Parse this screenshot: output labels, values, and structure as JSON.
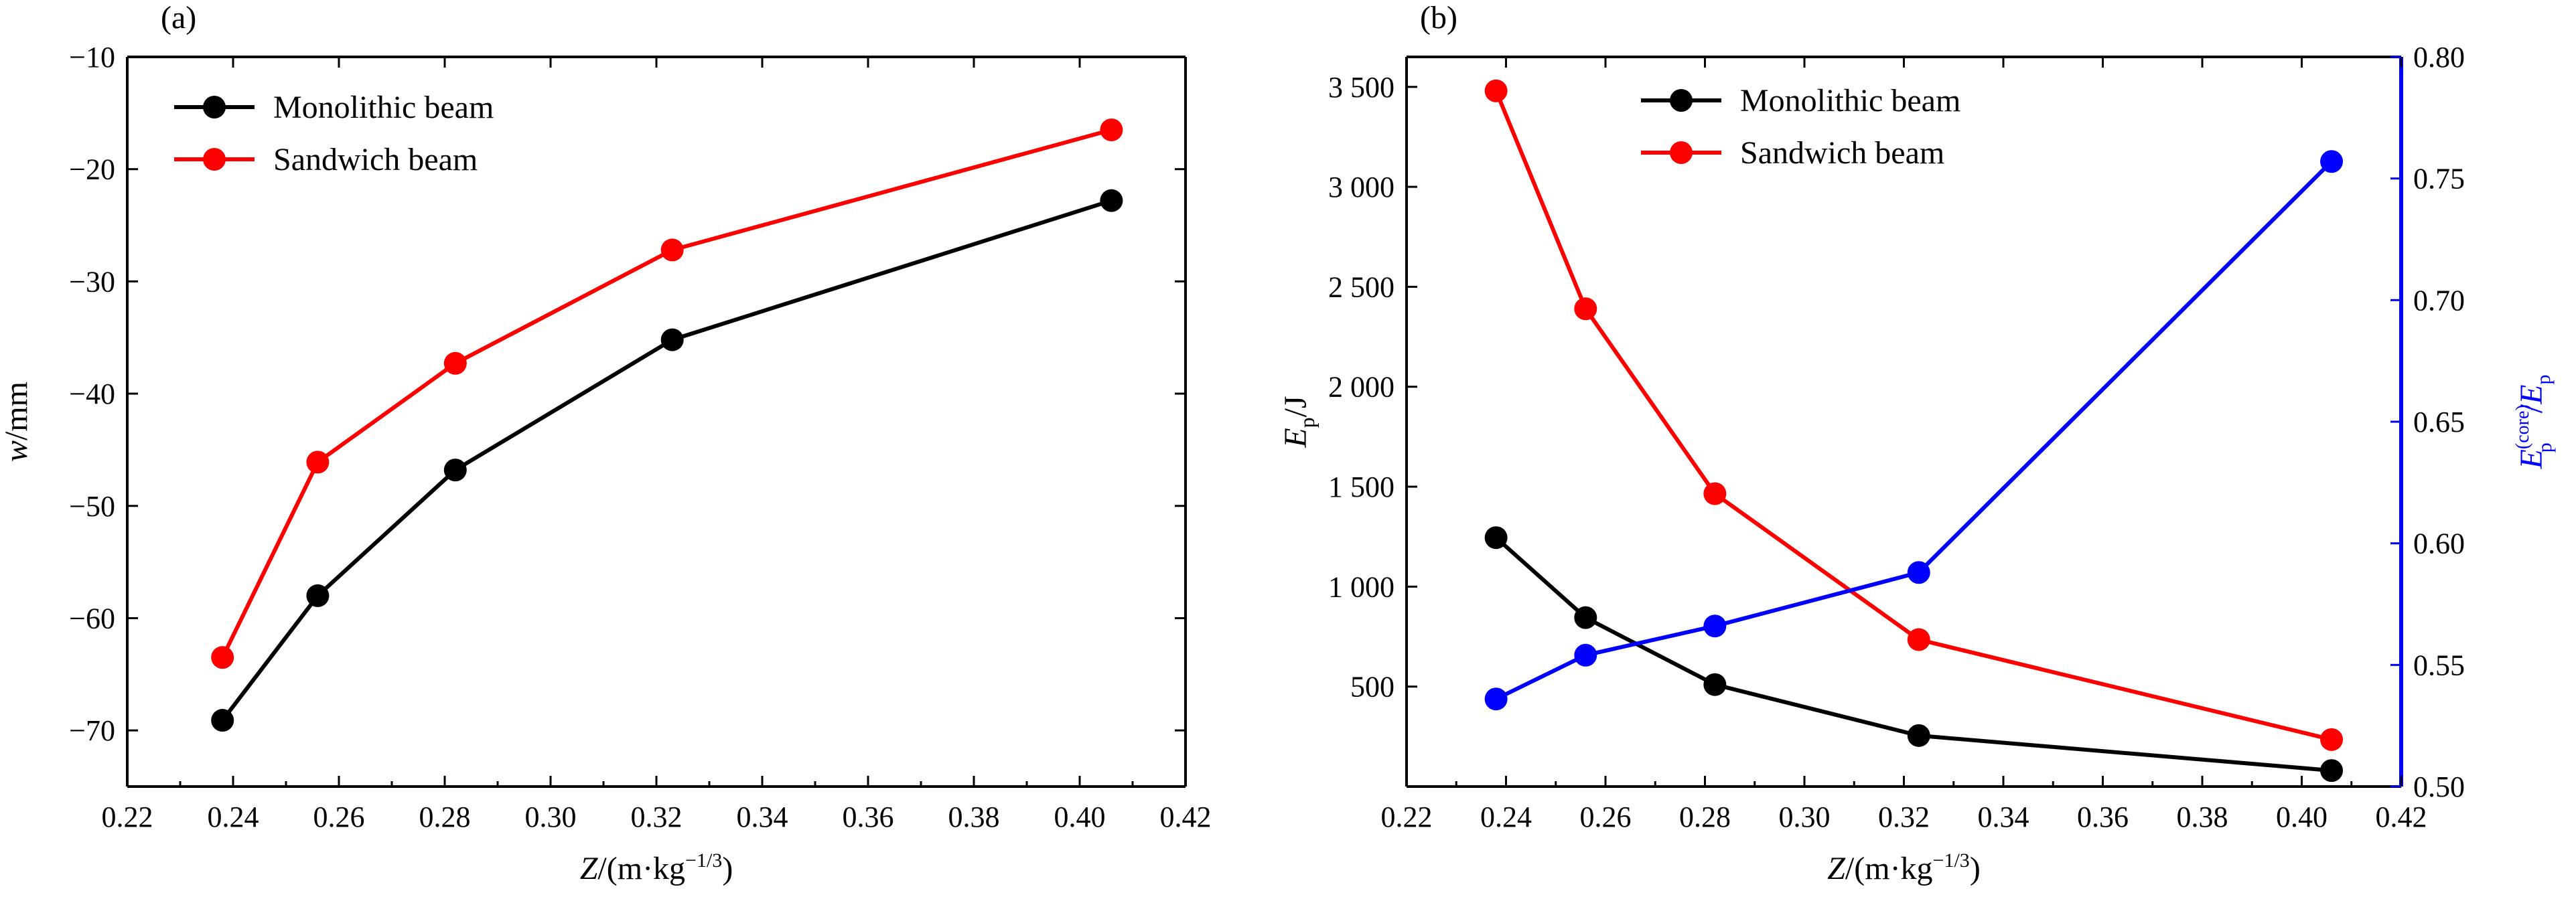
{
  "chart_data": [
    {
      "type": "line",
      "panel_label": "(a)",
      "x": [
        0.238,
        0.256,
        0.282,
        0.323,
        0.406
      ],
      "xlim": [
        0.22,
        0.42
      ],
      "xticks": [
        0.22,
        0.24,
        0.26,
        0.28,
        0.3,
        0.32,
        0.34,
        0.36,
        0.38,
        0.4,
        0.42
      ],
      "xtick_labels": [
        "0.22",
        "0.24",
        "0.26",
        "0.28",
        "0.30",
        "0.32",
        "0.34",
        "0.36",
        "0.38",
        "0.40",
        "0.42"
      ],
      "xlabel": {
        "var": "Z",
        "unit": "/(m·kg",
        "exp": "−1/3",
        "close": ")"
      },
      "ylabel": {
        "var": "w",
        "unit": "/mm"
      },
      "ylim": [
        -75,
        -10
      ],
      "yticks": [
        -70,
        -60,
        -50,
        -40,
        -30,
        -20,
        -10
      ],
      "ytick_labels": [
        "−70",
        "−60",
        "−50",
        "−40",
        "−30",
        "−20",
        "−10"
      ],
      "legend_position": "top-left",
      "series": [
        {
          "name": "Monolithic beam",
          "color": "#000000",
          "values": [
            -69.1,
            -58.0,
            -46.8,
            -35.2,
            -22.8
          ]
        },
        {
          "name": "Sandwich beam",
          "color": "#ff0000",
          "values": [
            -63.5,
            -46.1,
            -37.3,
            -27.2,
            -16.5
          ]
        }
      ]
    },
    {
      "type": "line",
      "panel_label": "(b)",
      "x": [
        0.238,
        0.256,
        0.282,
        0.323,
        0.406
      ],
      "xlim": [
        0.22,
        0.42
      ],
      "xticks": [
        0.22,
        0.24,
        0.26,
        0.28,
        0.3,
        0.32,
        0.34,
        0.36,
        0.38,
        0.4,
        0.42
      ],
      "xtick_labels": [
        "0.22",
        "0.24",
        "0.26",
        "0.28",
        "0.30",
        "0.32",
        "0.34",
        "0.36",
        "0.38",
        "0.40",
        "0.42"
      ],
      "xlabel": {
        "var": "Z",
        "unit": "/(m·kg",
        "exp": "−1/3",
        "close": ")"
      },
      "ylabel": {
        "var": "E",
        "sub": "p",
        "unit": "/J"
      },
      "ylim": [
        0,
        3650
      ],
      "yticks": [
        500,
        1000,
        1500,
        2000,
        2500,
        3000,
        3500
      ],
      "ytick_labels": [
        "500",
        "1 000",
        "1 500",
        "2 000",
        "2 500",
        "3 000",
        "3 500"
      ],
      "y2label": {
        "var": "E",
        "sub": "p",
        "sup": "(core)",
        "sep": "/",
        "var2": "E",
        "sub2": "p"
      },
      "y2lim": [
        0.5,
        0.8
      ],
      "y2ticks": [
        0.5,
        0.55,
        0.6,
        0.65,
        0.7,
        0.75,
        0.8
      ],
      "y2tick_labels": [
        "0.50",
        "0.55",
        "0.60",
        "0.65",
        "0.70",
        "0.75",
        "0.80"
      ],
      "y2_color": "#0000ff",
      "legend_position": "top-center",
      "series": [
        {
          "name": "Monolithic beam",
          "axis": "left",
          "color": "#000000",
          "values": [
            1245,
            845,
            510,
            255,
            80
          ]
        },
        {
          "name": "Sandwich beam",
          "axis": "left",
          "color": "#ff0000",
          "values": [
            3480,
            2390,
            1465,
            735,
            235
          ]
        },
        {
          "axis": "right",
          "color": "#0000ff",
          "values": [
            0.536,
            0.554,
            0.566,
            0.588,
            0.757
          ]
        }
      ]
    }
  ]
}
